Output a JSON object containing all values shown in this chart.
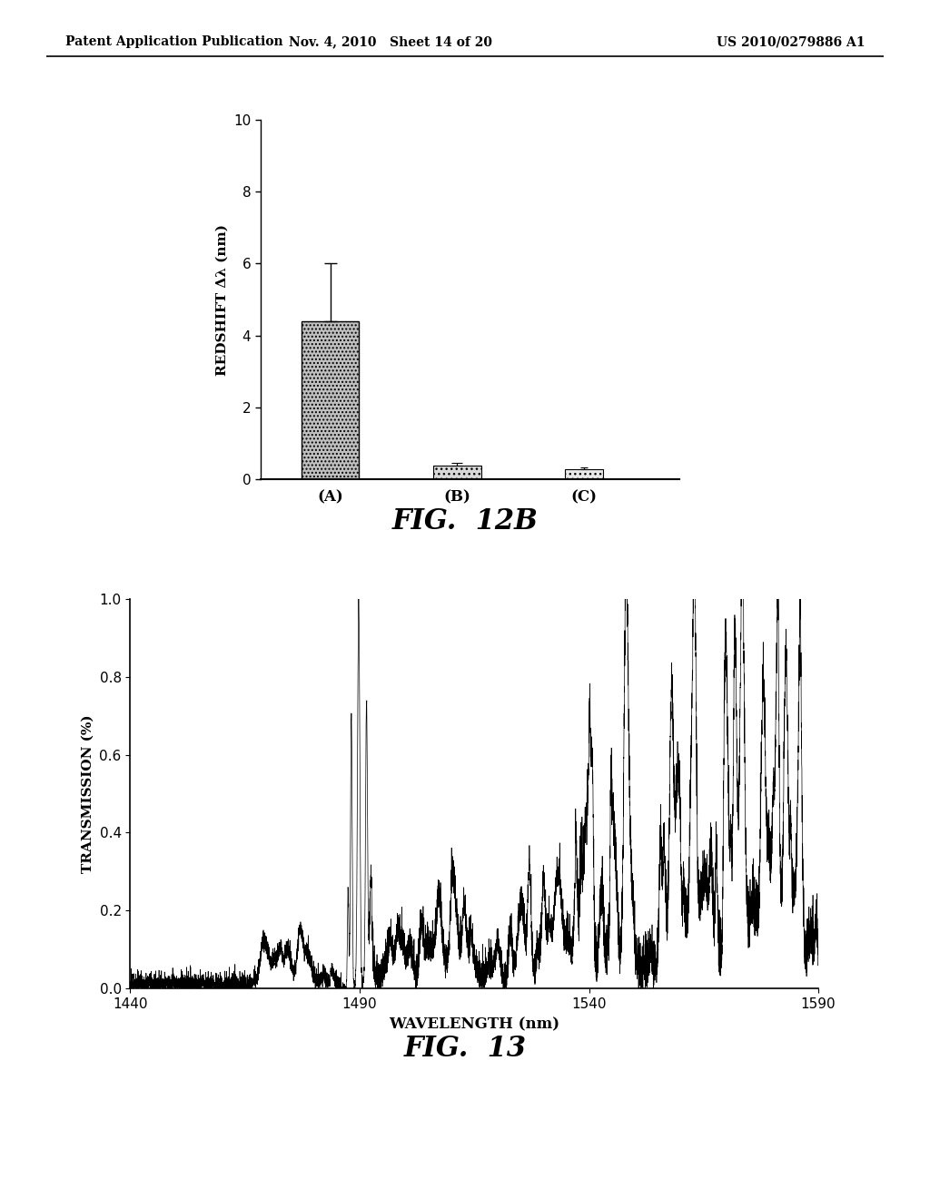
{
  "header_left": "Patent Application Publication",
  "header_mid": "Nov. 4, 2010   Sheet 14 of 20",
  "header_right": "US 2010/0279886 A1",
  "fig12b": {
    "title": "FIG.  12B",
    "categories": [
      "(A)",
      "(B)",
      "(C)"
    ],
    "values": [
      4.4,
      0.38,
      0.28
    ],
    "errors_up": [
      1.6,
      0.08,
      0.04
    ],
    "errors_down": [
      0.0,
      0.0,
      0.0
    ],
    "ylabel": "REDSHIFT Δλ (nm)",
    "ylim": [
      0,
      10
    ],
    "yticks": [
      0,
      2,
      4,
      6,
      8,
      10
    ]
  },
  "fig13": {
    "title": "FIG.  13",
    "xlabel": "WAVELENGTH (nm)",
    "ylabel": "TRANSMISSION (%)",
    "xlim": [
      1440,
      1590
    ],
    "ylim": [
      0,
      1.0
    ],
    "yticks": [
      0,
      0.2,
      0.4,
      0.6,
      0.8,
      1
    ],
    "xticks": [
      1440,
      1490,
      1540,
      1590
    ]
  },
  "background_color": "#ffffff"
}
